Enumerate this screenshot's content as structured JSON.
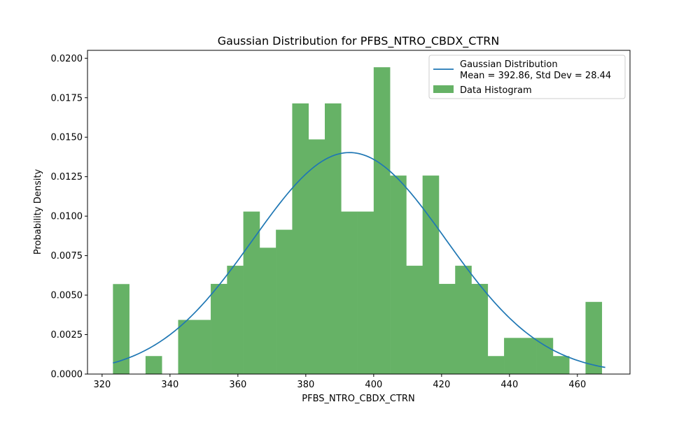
{
  "chart_data": {
    "type": "bar",
    "title": "Gaussian Distribution for PFBS_NTRO_CBDX_CTRN",
    "xlabel": "PFBS_NTRO_CBDX_CTRN",
    "ylabel": "Probability Density",
    "xlim": [
      315.7,
      475.5
    ],
    "ylim": [
      0,
      0.0205
    ],
    "xticks": [
      320,
      340,
      360,
      380,
      400,
      420,
      440,
      460
    ],
    "yticks": [
      0.0,
      0.0025,
      0.005,
      0.0075,
      0.01,
      0.0125,
      0.015,
      0.0175,
      0.02
    ],
    "ytick_labels": [
      "0.0000",
      "0.0025",
      "0.0050",
      "0.0075",
      "0.0100",
      "0.0125",
      "0.0150",
      "0.0175",
      "0.0200"
    ],
    "grid": false,
    "legend_position": "upper right",
    "histogram": {
      "name": "Data Histogram",
      "color": "#66b266",
      "bin_start": 323.2,
      "bin_width": 4.8,
      "values": [
        0.0057,
        0.0,
        0.00114,
        0.0,
        0.00343,
        0.00343,
        0.00571,
        0.00686,
        0.01029,
        0.008,
        0.00914,
        0.01714,
        0.01486,
        0.01714,
        0.01029,
        0.01029,
        0.01943,
        0.01257,
        0.00686,
        0.01257,
        0.00571,
        0.00686,
        0.00571,
        0.00114,
        0.00229,
        0.00229,
        0.00229,
        0.00114,
        0.0,
        0.00457
      ]
    },
    "curve": {
      "name": "Gaussian Distribution",
      "legend_label_line1": "Gaussian Distribution",
      "legend_label_line2": "Mean = 392.86, Std Dev = 28.44",
      "mean": 392.86,
      "std": 28.44,
      "x_min": 323.2,
      "x_max": 468.2,
      "color": "#1f77b4"
    }
  }
}
